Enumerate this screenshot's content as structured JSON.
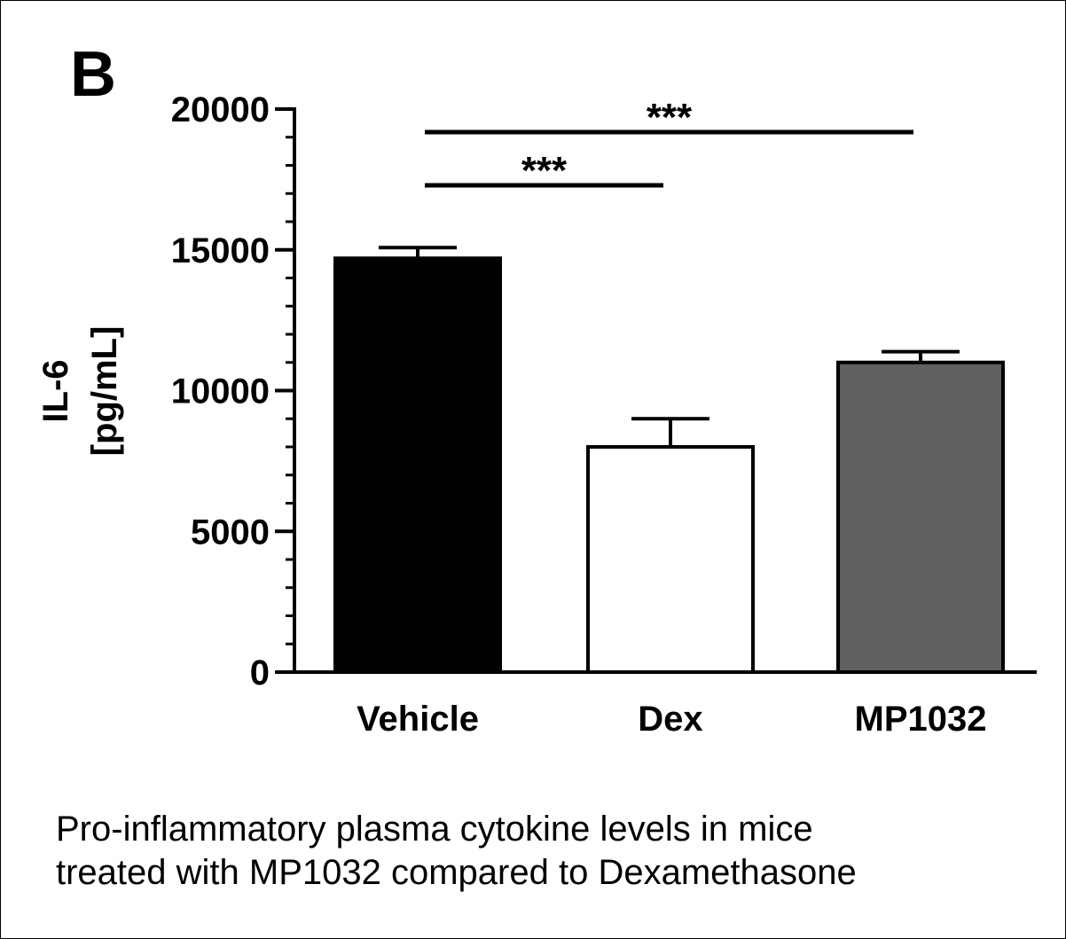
{
  "panel_label": "B",
  "caption": {
    "line1": "Pro-inflammatory plasma cytokine levels in mice",
    "line2": "treated with MP1032 compared to Dexamethasone"
  },
  "chart_data": {
    "type": "bar",
    "ylabel_line1": "IL-6",
    "ylabel_line2": "[pg/mL]",
    "ylim": [
      0,
      20000
    ],
    "yticks": [
      0,
      5000,
      10000,
      15000,
      20000
    ],
    "ytick_labels": [
      "0",
      "5000",
      "10000",
      "15000",
      "20000"
    ],
    "minor_tick_step": 1000,
    "categories": [
      "Vehicle",
      "Dex",
      "MP1032"
    ],
    "values": [
      14700,
      8000,
      11000
    ],
    "errors": [
      380,
      1000,
      380
    ],
    "colors": {
      "Vehicle": "#000000",
      "Dex": "#ffffff",
      "MP1032": "#606060"
    },
    "significance": [
      {
        "from": "Vehicle",
        "to": "Dex",
        "label": "***"
      },
      {
        "from": "Vehicle",
        "to": "MP1032",
        "label": "***"
      }
    ],
    "grid": false,
    "legend": "none"
  }
}
